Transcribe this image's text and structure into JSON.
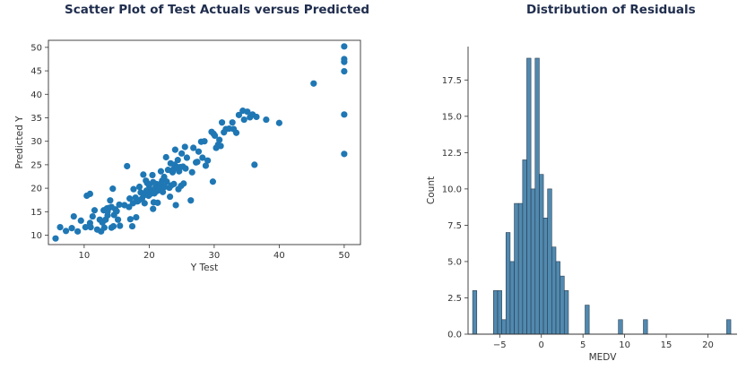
{
  "chart_data": [
    {
      "type": "scatter",
      "title": "Scatter Plot of Test Actuals versus Predicted",
      "xlabel": "Y Test",
      "ylabel": "Predicted Y",
      "xlim": [
        4.5,
        52.5
      ],
      "ylim": [
        8.0,
        51.5
      ],
      "xticks": [
        10,
        20,
        30,
        40,
        50
      ],
      "yticks": [
        10,
        15,
        20,
        25,
        30,
        35,
        40,
        45,
        50
      ],
      "color": "#1f77b4",
      "points": [
        [
          5.6,
          9.3
        ],
        [
          6.3,
          11.7
        ],
        [
          7.2,
          10.9
        ],
        [
          8.1,
          11.5
        ],
        [
          8.4,
          14.0
        ],
        [
          9.0,
          10.8
        ],
        [
          9.5,
          13.1
        ],
        [
          10.2,
          11.7
        ],
        [
          10.4,
          18.4
        ],
        [
          10.9,
          12.6
        ],
        [
          10.9,
          18.8
        ],
        [
          11.0,
          11.7
        ],
        [
          11.3,
          14.0
        ],
        [
          11.6,
          15.3
        ],
        [
          12.0,
          11.2
        ],
        [
          12.4,
          13.3
        ],
        [
          12.6,
          10.8
        ],
        [
          12.8,
          12.7
        ],
        [
          13.0,
          15.3
        ],
        [
          13.1,
          11.6
        ],
        [
          13.3,
          13.3
        ],
        [
          13.5,
          15.7
        ],
        [
          13.6,
          14.2
        ],
        [
          13.6,
          15.0
        ],
        [
          13.8,
          15.8
        ],
        [
          14.0,
          17.4
        ],
        [
          14.2,
          16.0
        ],
        [
          14.2,
          11.6
        ],
        [
          14.4,
          19.9
        ],
        [
          14.5,
          11.9
        ],
        [
          14.6,
          14.3
        ],
        [
          14.8,
          15.5
        ],
        [
          15.0,
          15.1
        ],
        [
          15.2,
          13.3
        ],
        [
          15.4,
          16.5
        ],
        [
          15.5,
          12.0
        ],
        [
          16.2,
          16.4
        ],
        [
          16.6,
          24.7
        ],
        [
          16.9,
          16.0
        ],
        [
          17.0,
          17.8
        ],
        [
          17.1,
          13.4
        ],
        [
          17.4,
          11.9
        ],
        [
          17.5,
          16.8
        ],
        [
          17.6,
          19.8
        ],
        [
          17.9,
          18.0
        ],
        [
          18.0,
          13.8
        ],
        [
          18.2,
          17.2
        ],
        [
          18.4,
          17.4
        ],
        [
          18.5,
          20.3
        ],
        [
          18.7,
          19.1
        ],
        [
          18.9,
          17.8
        ],
        [
          19.1,
          22.9
        ],
        [
          19.2,
          18.5
        ],
        [
          19.3,
          16.8
        ],
        [
          19.5,
          21.6
        ],
        [
          19.6,
          19.5
        ],
        [
          19.7,
          21.1
        ],
        [
          19.9,
          18.4
        ],
        [
          20.0,
          20.6
        ],
        [
          20.2,
          18.8
        ],
        [
          20.3,
          19.6
        ],
        [
          20.5,
          22.8
        ],
        [
          20.6,
          15.6
        ],
        [
          20.6,
          21.3
        ],
        [
          20.7,
          17.0
        ],
        [
          20.8,
          18.9
        ],
        [
          21.0,
          20.3
        ],
        [
          21.1,
          20.9
        ],
        [
          21.2,
          19.4
        ],
        [
          21.3,
          16.9
        ],
        [
          21.5,
          19.6
        ],
        [
          21.6,
          20.0
        ],
        [
          21.8,
          23.6
        ],
        [
          21.8,
          21.0
        ],
        [
          22.0,
          21.6
        ],
        [
          22.1,
          19.2
        ],
        [
          22.3,
          22.4
        ],
        [
          22.4,
          20.3
        ],
        [
          22.6,
          26.6
        ],
        [
          22.7,
          21.4
        ],
        [
          22.9,
          23.9
        ],
        [
          23.1,
          20.1
        ],
        [
          23.2,
          18.2
        ],
        [
          23.3,
          25.3
        ],
        [
          23.4,
          20.6
        ],
        [
          23.6,
          23.4
        ],
        [
          23.7,
          24.0
        ],
        [
          23.8,
          20.9
        ],
        [
          23.9,
          25.0
        ],
        [
          24.0,
          28.2
        ],
        [
          24.1,
          16.4
        ],
        [
          24.3,
          24.5
        ],
        [
          24.4,
          26.0
        ],
        [
          24.5,
          19.8
        ],
        [
          24.6,
          23.6
        ],
        [
          24.8,
          24.5
        ],
        [
          24.9,
          20.5
        ],
        [
          25.0,
          27.4
        ],
        [
          25.2,
          24.6
        ],
        [
          25.3,
          21.0
        ],
        [
          25.5,
          28.8
        ],
        [
          25.6,
          24.2
        ],
        [
          25.8,
          26.5
        ],
        [
          26.4,
          17.4
        ],
        [
          26.6,
          23.4
        ],
        [
          26.8,
          28.6
        ],
        [
          27.2,
          25.5
        ],
        [
          27.4,
          25.6
        ],
        [
          27.6,
          27.8
        ],
        [
          28.0,
          29.9
        ],
        [
          28.2,
          26.5
        ],
        [
          28.5,
          30.0
        ],
        [
          28.7,
          24.8
        ],
        [
          29.0,
          25.9
        ],
        [
          29.6,
          32.0
        ],
        [
          29.8,
          21.4
        ],
        [
          29.9,
          31.6
        ],
        [
          30.1,
          31.2
        ],
        [
          30.3,
          28.6
        ],
        [
          30.6,
          29.3
        ],
        [
          30.8,
          30.3
        ],
        [
          31.0,
          29.0
        ],
        [
          31.2,
          34.0
        ],
        [
          31.5,
          31.9
        ],
        [
          31.8,
          32.6
        ],
        [
          32.3,
          32.7
        ],
        [
          32.8,
          34.0
        ],
        [
          33.0,
          32.6
        ],
        [
          33.4,
          31.8
        ],
        [
          33.8,
          35.6
        ],
        [
          34.4,
          36.5
        ],
        [
          34.6,
          34.6
        ],
        [
          35.1,
          36.3
        ],
        [
          35.5,
          35.1
        ],
        [
          35.9,
          35.7
        ],
        [
          36.2,
          25.0
        ],
        [
          36.5,
          35.2
        ],
        [
          38.0,
          34.6
        ],
        [
          40.0,
          33.9
        ],
        [
          45.3,
          42.3
        ],
        [
          50.0,
          50.2
        ],
        [
          50.0,
          47.5
        ],
        [
          50.0,
          46.9
        ],
        [
          50.0,
          44.9
        ],
        [
          50.0,
          35.7
        ],
        [
          50.0,
          27.3
        ]
      ]
    },
    {
      "type": "histogram",
      "title": "Distribution of Residuals",
      "xlabel": "MEDV",
      "ylabel": "Count",
      "xlim": [
        -8.8,
        23.5
      ],
      "ylim": [
        0,
        19.8
      ],
      "xticks": [
        -5,
        0,
        5,
        10,
        15,
        20
      ],
      "yticks": [
        0.0,
        2.5,
        5.0,
        7.5,
        10.0,
        12.5,
        15.0,
        17.5
      ],
      "color": "#3274a1",
      "bin_start": -8.25,
      "bin_width": 0.5,
      "counts": [
        3,
        0,
        0,
        0,
        0,
        3,
        3,
        1,
        7,
        5,
        9,
        9,
        12,
        19,
        10,
        19,
        11,
        8,
        10,
        6,
        5,
        4,
        3,
        0,
        0,
        0,
        0,
        2,
        0,
        0,
        0,
        0,
        0,
        0,
        0,
        1,
        0,
        0,
        0,
        0,
        0,
        1,
        0,
        0,
        0,
        0,
        0,
        0,
        0,
        0,
        0,
        0,
        0,
        0,
        0,
        0,
        0,
        0,
        0,
        0,
        0,
        1
      ]
    }
  ]
}
